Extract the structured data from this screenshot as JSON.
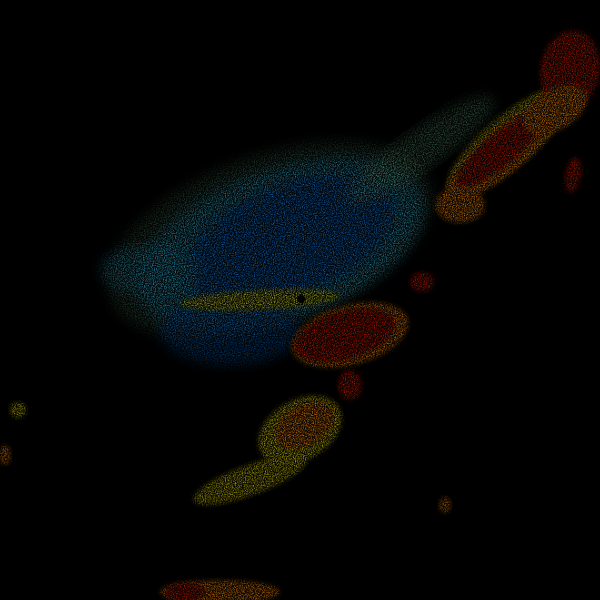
{
  "radar": {
    "background": "#000000",
    "palette": {
      "light_green": "#7fd6a0",
      "cyan": "#2fb4e0",
      "blue": "#0b6ad0",
      "yellow": "#f2e400",
      "orange": "#ff8a00",
      "red": "#d41a00",
      "dark_red": "#b00000"
    }
  }
}
